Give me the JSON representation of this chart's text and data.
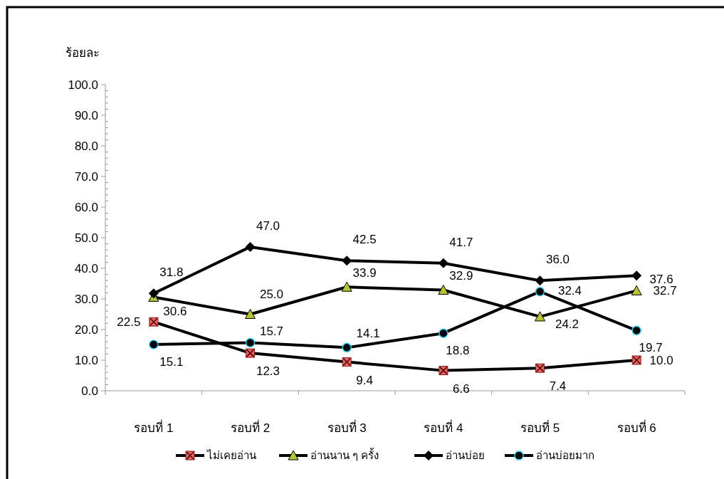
{
  "chart_data": {
    "type": "line",
    "ylabel": "ร้อยละ",
    "categories": [
      "รอบที่ 1",
      "รอบที่ 2",
      "รอบที่ 3",
      "รอบที่ 4",
      "รอบที่ 5",
      "รอบที่ 6"
    ],
    "ylim": [
      0,
      100
    ],
    "yticks": [
      {
        "value": 0,
        "label": "0.0"
      },
      {
        "value": 10,
        "label": "10.0"
      },
      {
        "value": 20,
        "label": "20.0"
      },
      {
        "value": 30,
        "label": "30.0"
      },
      {
        "value": 40,
        "label": "40.0"
      },
      {
        "value": 50,
        "label": "50.0"
      },
      {
        "value": 60,
        "label": "60.0"
      },
      {
        "value": 70,
        "label": "70.0"
      },
      {
        "value": 80,
        "label": "80.0"
      },
      {
        "value": 90,
        "label": "90.0"
      },
      {
        "value": 100,
        "label": "100.0"
      }
    ],
    "grid": false,
    "legend": "bottom",
    "line_style": "solid",
    "series": [
      {
        "name": "ไม่เคยอ่าน",
        "color": "#000000",
        "marker": "square",
        "values": [
          22.5,
          12.3,
          9.4,
          6.6,
          7.4,
          10.0
        ],
        "value_labels": [
          "22.5",
          "12.3",
          "9.4",
          "6.6",
          "7.4",
          "10.0"
        ]
      },
      {
        "name": "อ่านนาน ๆ ครั้ง",
        "color": "#000000",
        "marker": "triangle",
        "values": [
          30.6,
          25.0,
          33.9,
          32.9,
          24.2,
          32.7
        ],
        "value_labels": [
          "30.6",
          "25.0",
          "33.9",
          "32.9",
          "24.2",
          "32.7"
        ]
      },
      {
        "name": "อ่านบ่อย",
        "color": "#000000",
        "marker": "diamond",
        "values": [
          31.8,
          47.0,
          42.5,
          41.7,
          36.0,
          37.6
        ],
        "value_labels": [
          "31.8",
          "47.0",
          "42.5",
          "41.7",
          "36.0",
          "37.6"
        ]
      },
      {
        "name": "อ่านบ่อยมาก",
        "color": "#000000",
        "marker": "circle",
        "values": [
          15.1,
          15.7,
          14.1,
          18.8,
          32.4,
          19.7
        ],
        "value_labels": [
          "15.1",
          "15.7",
          "14.1",
          "18.8",
          "32.4",
          "19.7"
        ]
      }
    ]
  }
}
